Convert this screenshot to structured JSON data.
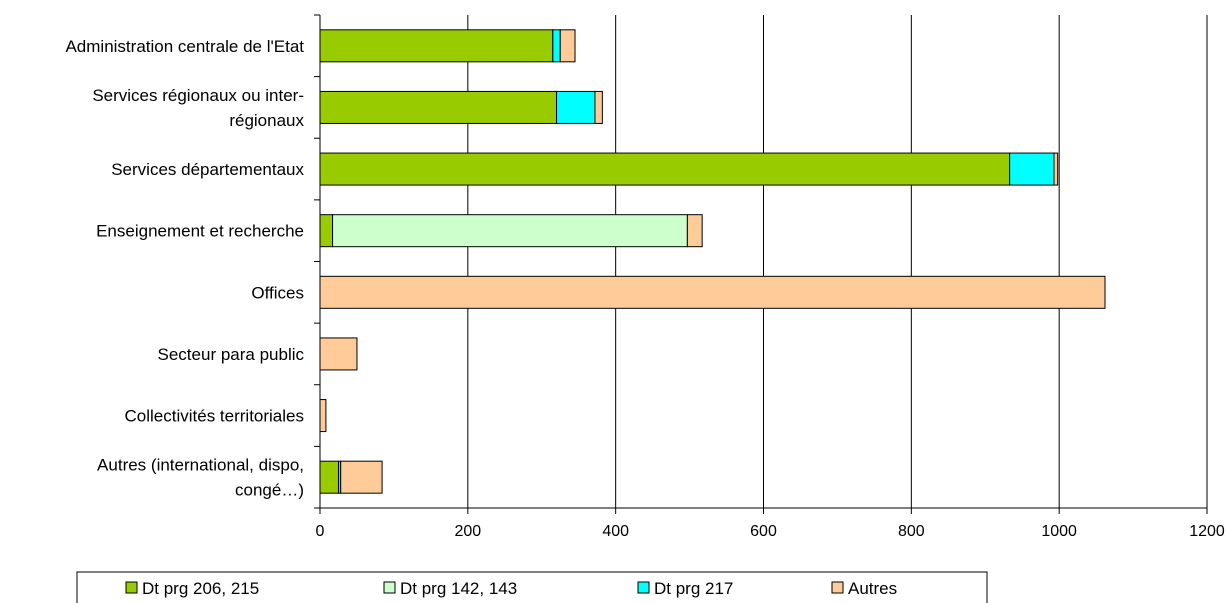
{
  "chart_data": {
    "type": "bar",
    "orientation": "horizontal",
    "stacked": true,
    "categories": [
      [
        "Administration centrale de l'Etat"
      ],
      [
        "Services régionaux ou inter-",
        "régionaux"
      ],
      [
        "Services départementaux"
      ],
      [
        "Enseignement et recherche"
      ],
      [
        "Offices"
      ],
      [
        "Secteur para public"
      ],
      [
        "Collectivités territoriales"
      ],
      [
        "Autres (international, dispo,",
        "congé…)"
      ]
    ],
    "series": [
      {
        "name": "Dt prg 206, 215",
        "color": "#99cc00",
        "values": [
          315,
          320,
          933,
          17,
          0,
          0,
          0,
          25
        ]
      },
      {
        "name": "Dt prg 142, 143",
        "color": "#ccffcc",
        "values": [
          0,
          0,
          0,
          480,
          0,
          0,
          0,
          0
        ]
      },
      {
        "name": "Dt prg 217",
        "color": "#00ffff",
        "values": [
          10,
          52,
          60,
          0,
          0,
          0,
          0,
          3
        ]
      },
      {
        "name": "Autres",
        "color": "#ffcc99",
        "values": [
          20,
          10,
          5,
          20,
          1062,
          50,
          8,
          56
        ]
      }
    ],
    "xlim": [
      0,
      1200
    ],
    "xticks": [
      "0",
      "200",
      "400",
      "600",
      "800",
      "1000",
      "1200"
    ],
    "grid": "vertical",
    "legend": "bottom"
  }
}
